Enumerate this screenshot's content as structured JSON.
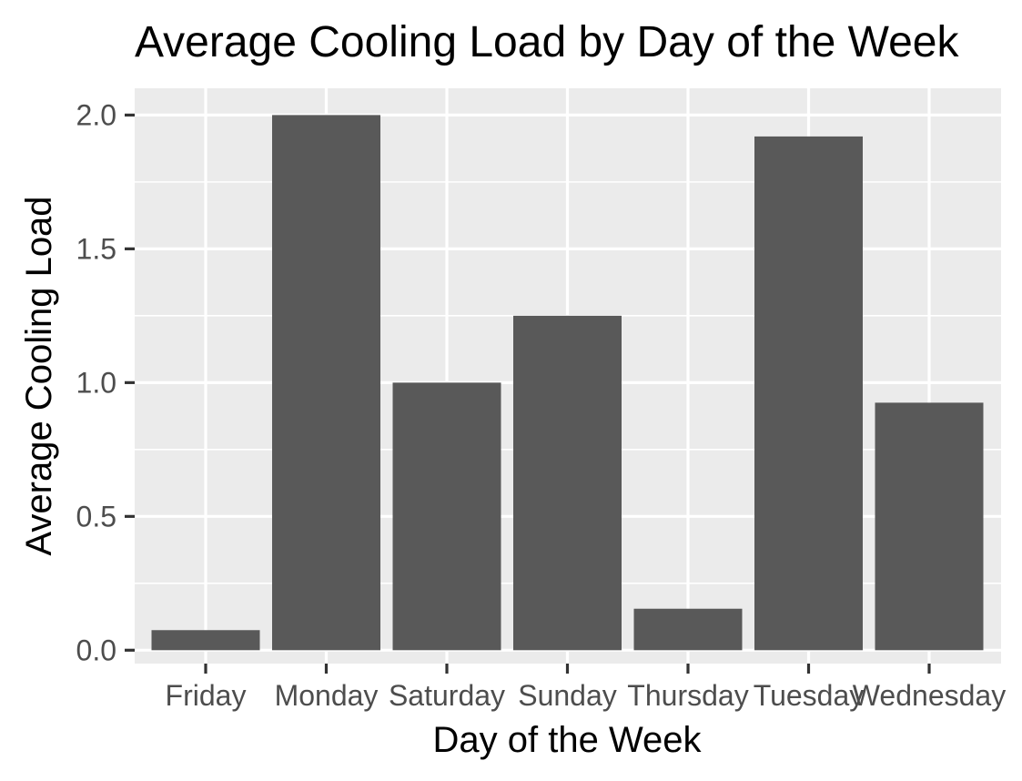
{
  "chart_data": {
    "type": "bar",
    "title": "Average Cooling Load by Day of the Week",
    "xlabel": "Day of the Week",
    "ylabel": "Average Cooling Load",
    "categories": [
      "Friday",
      "Monday",
      "Saturday",
      "Sunday",
      "Thursday",
      "Tuesday",
      "Wednesday"
    ],
    "values": [
      0.075,
      2.0,
      1.0,
      1.25,
      0.155,
      1.92,
      0.925
    ],
    "yticks": [
      "0.0",
      "0.5",
      "1.0",
      "1.5",
      "2.0"
    ],
    "ylim": [
      -0.05,
      2.1
    ],
    "grid": true,
    "legend": "none",
    "colors": {
      "bar": "#595959",
      "panel": "#ebebeb",
      "grid": "#ffffff",
      "tick": "#333333"
    }
  }
}
